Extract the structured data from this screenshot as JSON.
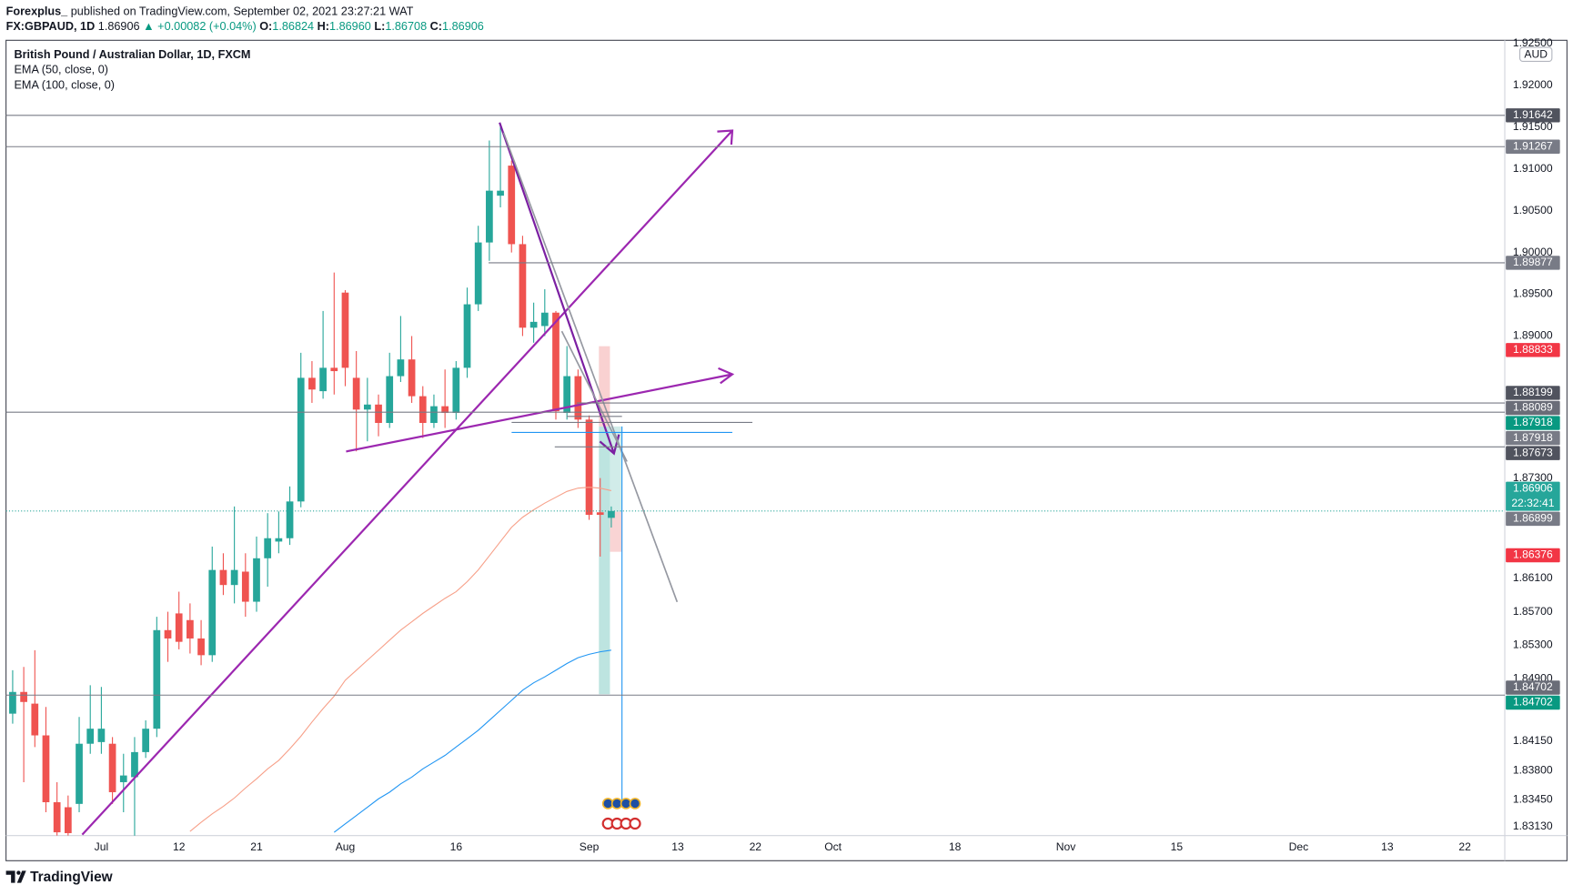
{
  "header": {
    "author": "Forexplus_",
    "published": "published on TradingView.com, September 02, 2021 23:27:21 WAT",
    "symbol": "FX:GBPAUD, 1D",
    "price": "1.86906",
    "change": "▲ +0.00082 (+0.04%)",
    "ohlc": [
      {
        "key": "O:",
        "value": "1.86824"
      },
      {
        "key": "H:",
        "value": "1.86960"
      },
      {
        "key": "L:",
        "value": "1.86708"
      },
      {
        "key": "C:",
        "value": "1.86906"
      }
    ]
  },
  "chart_data": {
    "type": "candlestick",
    "title": "British Pound / Australian Dollar, 1D, FXCM",
    "currency": "AUD",
    "up_color": "#26a69a",
    "down_color": "#ef5350",
    "grid": false,
    "open": [
      1.8448,
      1.8474,
      1.846,
      1.8422,
      1.8342,
      1.8336,
      1.834,
      1.8412,
      1.8414,
      1.8412,
      1.8366,
      1.8372,
      1.8402,
      1.843,
      1.8548,
      1.8568,
      1.856,
      1.8538,
      1.8518,
      1.862,
      1.8602,
      1.8618,
      1.8582,
      1.8634,
      1.8654,
      1.8658,
      1.8702,
      1.885,
      1.8834,
      1.8862,
      1.8952,
      1.885,
      1.8812,
      1.8818,
      1.8796,
      1.8852,
      1.8872,
      1.8828,
      1.8796,
      1.8816,
      1.8808,
      1.8862,
      1.8938,
      1.9012,
      1.9068,
      1.9104,
      1.901,
      1.891,
      1.8912,
      1.8928,
      1.8808,
      1.8852,
      1.88,
      1.8689,
      1.86824
    ],
    "high": [
      1.85,
      1.8504,
      1.8524,
      1.8456,
      1.8366,
      1.835,
      1.8444,
      1.8482,
      1.848,
      1.842,
      1.84,
      1.842,
      1.844,
      1.8564,
      1.857,
      1.8594,
      1.858,
      1.856,
      1.8648,
      1.864,
      1.8696,
      1.864,
      1.866,
      1.8688,
      1.869,
      1.872,
      1.888,
      1.887,
      1.893,
      1.8976,
      1.8955,
      1.8882,
      1.885,
      1.883,
      1.888,
      1.8924,
      1.89,
      1.884,
      1.883,
      1.886,
      1.887,
      1.8958,
      1.9032,
      1.9134,
      1.9154,
      1.911,
      1.902,
      1.894,
      1.8956,
      1.893,
      1.8888,
      1.886,
      1.8805,
      1.873,
      1.8696
    ],
    "low": [
      1.8436,
      1.8366,
      1.8408,
      1.833,
      1.8302,
      1.8302,
      1.833,
      1.84,
      1.84,
      1.834,
      1.833,
      1.83,
      1.8395,
      1.842,
      1.851,
      1.8525,
      1.852,
      1.8506,
      1.851,
      1.859,
      1.858,
      1.8564,
      1.857,
      1.86,
      1.864,
      1.865,
      1.8695,
      1.882,
      1.8825,
      1.883,
      1.884,
      1.8762,
      1.8774,
      1.878,
      1.879,
      1.8845,
      1.882,
      1.8778,
      1.879,
      1.879,
      1.88,
      1.885,
      1.893,
      1.899,
      1.9054,
      1.9,
      1.89,
      1.8892,
      1.89,
      1.88,
      1.88,
      1.879,
      1.868,
      1.8636,
      1.86708
    ],
    "close": [
      1.8474,
      1.8462,
      1.8422,
      1.8342,
      1.8306,
      1.8305,
      1.8412,
      1.843,
      1.843,
      1.8354,
      1.8374,
      1.8402,
      1.843,
      1.8548,
      1.8538,
      1.8534,
      1.8538,
      1.8518,
      1.862,
      1.8602,
      1.862,
      1.8582,
      1.8634,
      1.8658,
      1.8658,
      1.8702,
      1.885,
      1.8836,
      1.8862,
      1.8858,
      1.8862,
      1.8812,
      1.8818,
      1.8796,
      1.8852,
      1.8872,
      1.8828,
      1.8796,
      1.8816,
      1.8808,
      1.8862,
      1.8938,
      1.9012,
      1.9074,
      1.9074,
      1.901,
      1.891,
      1.8917,
      1.8928,
      1.881,
      1.8852,
      1.88,
      1.8686,
      1.8686,
      1.86906
    ],
    "series": [
      {
        "name": "EMA (50, close, 0)",
        "color": "#f7a089",
        "values": [
          null,
          null,
          null,
          null,
          null,
          null,
          null,
          null,
          null,
          null,
          null,
          null,
          null,
          null,
          null,
          null,
          1.8307,
          1.8318,
          1.8328,
          1.8337,
          1.8347,
          1.8359,
          1.837,
          1.8382,
          1.8392,
          1.8406,
          1.8421,
          1.8438,
          1.8454,
          1.8469,
          1.8488,
          1.85,
          1.8512,
          1.8524,
          1.8536,
          1.8548,
          1.8558,
          1.8568,
          1.8577,
          1.8586,
          1.8594,
          1.8606,
          1.862,
          1.8637,
          1.8654,
          1.8671,
          1.8683,
          1.8692,
          1.87,
          1.8707,
          1.8714,
          1.8718,
          1.8719,
          1.8718,
          1.8715
        ]
      },
      {
        "name": "EMA (100, close, 0)",
        "color": "#2196f3",
        "values": [
          null,
          null,
          null,
          null,
          null,
          null,
          null,
          null,
          null,
          null,
          null,
          null,
          null,
          null,
          null,
          null,
          null,
          null,
          null,
          null,
          null,
          null,
          null,
          null,
          null,
          null,
          null,
          null,
          null,
          1.8306,
          1.8316,
          1.8326,
          1.8336,
          1.8346,
          1.8354,
          1.8364,
          1.8372,
          1.8382,
          1.839,
          1.8398,
          1.8408,
          1.8418,
          1.8428,
          1.844,
          1.8452,
          1.8464,
          1.8476,
          1.8485,
          1.8492,
          1.85,
          1.8508,
          1.8515,
          1.8519,
          1.8522,
          1.8524
        ]
      }
    ],
    "xlim": [
      -0.6,
      134.6
    ],
    "xticks": [
      {
        "value": 8,
        "label": "Jul"
      },
      {
        "value": 15,
        "label": "12"
      },
      {
        "value": 22,
        "label": "21"
      },
      {
        "value": 30,
        "label": "Aug"
      },
      {
        "value": 40,
        "label": "16"
      },
      {
        "value": 52,
        "label": "Sep"
      },
      {
        "value": 60,
        "label": "13"
      },
      {
        "value": 67,
        "label": "22"
      },
      {
        "value": 74,
        "label": "Oct"
      },
      {
        "value": 85,
        "label": "18"
      },
      {
        "value": 95,
        "label": "Nov"
      },
      {
        "value": 105,
        "label": "15"
      },
      {
        "value": 116,
        "label": "Dec"
      },
      {
        "value": 124,
        "label": "13"
      },
      {
        "value": 131,
        "label": "22"
      }
    ],
    "ylim": [
      1.8302,
      1.9254
    ],
    "yticks": [
      {
        "value": 1.925,
        "label": "1.92500"
      },
      {
        "value": 1.92,
        "label": "1.92000"
      },
      {
        "value": 1.915,
        "label": "1.91500"
      },
      {
        "value": 1.91,
        "label": "1.91000"
      },
      {
        "value": 1.905,
        "label": "1.90500"
      },
      {
        "value": 1.9,
        "label": "1.90000"
      },
      {
        "value": 1.895,
        "label": "1.89500"
      },
      {
        "value": 1.89,
        "label": "1.89000"
      },
      {
        "value": 1.873,
        "label": "1.87300"
      },
      {
        "value": 1.861,
        "label": "1.86100"
      },
      {
        "value": 1.857,
        "label": "1.85700"
      },
      {
        "value": 1.853,
        "label": "1.85300"
      },
      {
        "value": 1.849,
        "label": "1.84900"
      },
      {
        "value": 1.8415,
        "label": "1.84150"
      },
      {
        "value": 1.838,
        "label": "1.83800"
      },
      {
        "value": 1.8345,
        "label": "1.83450"
      },
      {
        "value": 1.8313,
        "label": "1.83130"
      }
    ],
    "levels": [
      {
        "value": 1.91642,
        "label": "1.91642",
        "color": "#50535e"
      },
      {
        "value": 1.91267,
        "label": "1.91267",
        "color": "#787b86"
      },
      {
        "value": 1.89877,
        "label": "1.89877",
        "color": "#787b86"
      },
      {
        "value": 1.88833,
        "label": "1.88833",
        "color": "#f23645"
      },
      {
        "value": 1.88199,
        "label": "1.88199",
        "color": "#50535e"
      },
      {
        "value": 1.88089,
        "label": "1.88089",
        "color": "#6a6d78"
      },
      {
        "value": 1.87918,
        "label": "1.87918",
        "color": "#089981"
      },
      {
        "value": 1.87918,
        "label": "1.87918",
        "color": "#787b86"
      },
      {
        "value": 1.87673,
        "label": "1.87673",
        "color": "#50535e"
      },
      {
        "value": 1.86906,
        "label": "1.86906",
        "color": "#26a69a",
        "countdown": "22:32:41"
      },
      {
        "value": 1.86899,
        "label": "1.86899",
        "color": "#787b86"
      },
      {
        "value": 1.86376,
        "label": "1.86376",
        "color": "#f23645"
      },
      {
        "value": 1.84702,
        "label": "1.84702",
        "color": "#6a6d78"
      },
      {
        "value": 1.84702,
        "label": "1.84702",
        "color": "#089981"
      }
    ]
  },
  "footer": {
    "brand": "TradingView"
  }
}
